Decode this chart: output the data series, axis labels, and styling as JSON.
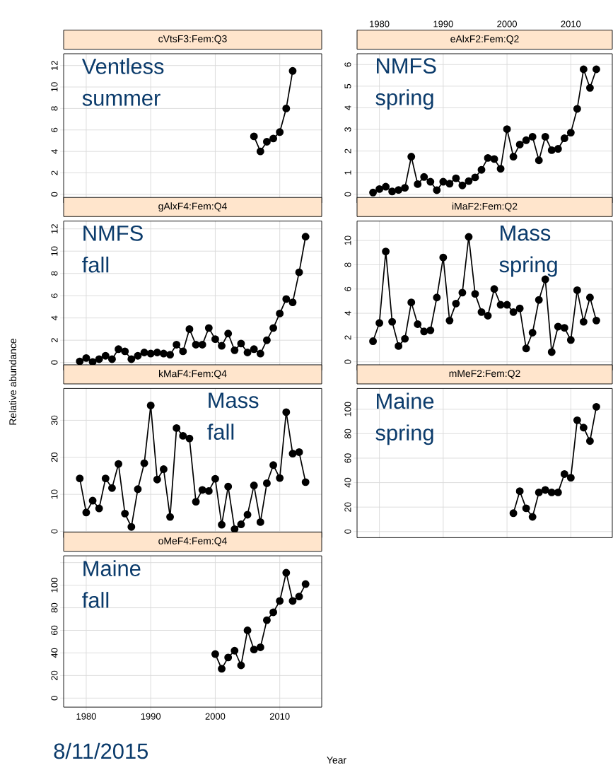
{
  "chart_data": [
    {
      "type": "line",
      "title": "cVtsF3:Fem:Q3",
      "annotations": [
        "Ventless summer"
      ],
      "x": [
        2006,
        2007,
        2008,
        2009,
        2010,
        2011,
        2012
      ],
      "values": [
        5.4,
        4.0,
        4.9,
        5.2,
        5.8,
        8.0,
        11.5
      ],
      "color": "#000000",
      "xlim": [
        1976.5,
        2016.5
      ],
      "xticks": [
        1980,
        1990,
        2000,
        2010
      ],
      "ylim": [
        -0.8,
        13.1
      ],
      "yticks": [
        0,
        2,
        4,
        6,
        8,
        10,
        12
      ],
      "grid": true,
      "marker": "circle",
      "line_style": "solid",
      "tick_labels": "y"
    },
    {
      "type": "line",
      "title": "eAlxF2:Fem:Q2",
      "annotations": [
        "NMFS spring"
      ],
      "x": [
        1979,
        1980,
        1981,
        1982,
        1983,
        1984,
        1985,
        1986,
        1987,
        1988,
        1989,
        1990,
        1991,
        1992,
        1993,
        1994,
        1995,
        1996,
        1997,
        1998,
        1999,
        2000,
        2001,
        2002,
        2003,
        2004,
        2005,
        2006,
        2007,
        2008,
        2009,
        2010,
        2011,
        2012,
        2013,
        2014
      ],
      "values": [
        0.08,
        0.24,
        0.35,
        0.13,
        0.2,
        0.3,
        1.74,
        0.47,
        0.8,
        0.58,
        0.19,
        0.58,
        0.49,
        0.74,
        0.41,
        0.61,
        0.78,
        1.13,
        1.68,
        1.63,
        1.18,
        3.01,
        1.74,
        2.3,
        2.5,
        2.66,
        1.57,
        2.66,
        2.04,
        2.1,
        2.59,
        2.85,
        3.95,
        5.78,
        4.92,
        5.78
      ],
      "color": "#000000",
      "xlim": [
        1976.5,
        2016.5
      ],
      "xticks": [
        1980,
        1990,
        2000,
        2010
      ],
      "ylim": [
        -0.4,
        6.5
      ],
      "yticks": [
        0,
        1,
        2,
        3,
        4,
        5,
        6
      ],
      "grid": true,
      "marker": "circle",
      "line_style": "solid"
    },
    {
      "type": "line",
      "title": "gAlxF4:Fem:Q4",
      "annotations": [
        "NMFS fall"
      ],
      "x": [
        1979,
        1980,
        1981,
        1982,
        1983,
        1984,
        1985,
        1986,
        1987,
        1988,
        1989,
        1990,
        1991,
        1992,
        1993,
        1994,
        1995,
        1996,
        1997,
        1998,
        1999,
        2000,
        2001,
        2002,
        2003,
        2004,
        2005,
        2006,
        2007,
        2008,
        2009,
        2010,
        2011,
        2012,
        2013,
        2014
      ],
      "values": [
        0.1,
        0.4,
        0.05,
        0.3,
        0.6,
        0.3,
        1.2,
        1.0,
        0.3,
        0.6,
        0.9,
        0.8,
        0.9,
        0.8,
        0.7,
        1.6,
        1.0,
        3.0,
        1.6,
        1.6,
        3.1,
        2.1,
        1.5,
        2.6,
        1.1,
        1.7,
        0.9,
        1.2,
        0.8,
        2.0,
        3.1,
        4.4,
        5.7,
        5.4,
        8.1,
        11.3
      ],
      "color": "#000000",
      "xlim": [
        1976.5,
        2016.5
      ],
      "xticks": [
        1980,
        1990,
        2000,
        2010
      ],
      "ylim": [
        -0.7,
        12.7
      ],
      "yticks": [
        0,
        2,
        4,
        6,
        8,
        10,
        12
      ],
      "grid": true,
      "marker": "circle",
      "line_style": "solid",
      "tick_labels": "y"
    },
    {
      "type": "line",
      "title": "iMaF2:Fem:Q2",
      "annotations": [
        "Mass spring"
      ],
      "x": [
        1979,
        1980,
        1981,
        1982,
        1983,
        1984,
        1985,
        1986,
        1987,
        1988,
        1989,
        1990,
        1991,
        1992,
        1993,
        1994,
        1995,
        1996,
        1997,
        1998,
        1999,
        2000,
        2001,
        2002,
        2003,
        2004,
        2005,
        2006,
        2007,
        2008,
        2009,
        2010,
        2011,
        2012,
        2013,
        2014
      ],
      "values": [
        1.7,
        3.2,
        9.1,
        3.3,
        1.3,
        1.9,
        4.9,
        3.1,
        2.5,
        2.6,
        5.3,
        8.6,
        3.4,
        4.8,
        5.7,
        10.3,
        5.6,
        4.1,
        3.8,
        6.0,
        4.7,
        4.7,
        4.1,
        4.4,
        1.1,
        2.4,
        5.1,
        6.8,
        0.8,
        2.9,
        2.8,
        1.8,
        5.9,
        3.3,
        5.3,
        3.4
      ],
      "color": "#000000",
      "xlim": [
        1976.5,
        2016.5
      ],
      "xticks": [
        1980,
        1990,
        2000,
        2010
      ],
      "ylim": [
        -0.7,
        11.6
      ],
      "yticks": [
        0,
        2,
        4,
        6,
        8,
        10
      ],
      "grid": true,
      "marker": "circle",
      "line_style": "solid",
      "tick_labels": "y"
    },
    {
      "type": "line",
      "title": "kMaF4:Fem:Q4",
      "ylabel": "Relative abundance",
      "annotations": [
        "Mass fall"
      ],
      "x": [
        1979,
        1980,
        1981,
        1982,
        1983,
        1984,
        1985,
        1986,
        1987,
        1988,
        1989,
        1990,
        1991,
        1992,
        1993,
        1994,
        1995,
        1996,
        1997,
        1998,
        1999,
        2000,
        2001,
        2002,
        2003,
        2004,
        2005,
        2006,
        2007,
        2008,
        2009,
        2010,
        2011,
        2012,
        2013,
        2014
      ],
      "values": [
        14.3,
        5.1,
        8.3,
        6.2,
        14.3,
        11.7,
        18.2,
        4.8,
        1.2,
        11.4,
        18.4,
        34.0,
        14.0,
        16.8,
        3.9,
        27.9,
        25.8,
        25.1,
        8.0,
        11.2,
        10.9,
        14.2,
        1.8,
        12.1,
        0.6,
        1.9,
        4.5,
        12.4,
        2.5,
        13.0,
        17.9,
        14.4,
        32.2,
        21.0,
        21.4,
        13.3
      ],
      "color": "#000000",
      "xlim": [
        1976.5,
        2016.5
      ],
      "xticks": [
        1980,
        1990,
        2000,
        2010
      ],
      "ylim": [
        -1.7,
        38.6
      ],
      "yticks": [
        0,
        10,
        20,
        30
      ],
      "grid": true,
      "marker": "circle",
      "line_style": "solid",
      "tick_labels": "y"
    },
    {
      "type": "line",
      "title": "mMeF2:Fem:Q2",
      "annotations": [
        "Maine spring"
      ],
      "x": [
        2001,
        2002,
        2003,
        2004,
        2005,
        2006,
        2007,
        2008,
        2009,
        2010,
        2011,
        2012,
        2013,
        2014
      ],
      "values": [
        15,
        33,
        19,
        12,
        32,
        34,
        32,
        32,
        47,
        44,
        91,
        85,
        74,
        102
      ],
      "color": "#000000",
      "xlim": [
        1976.5,
        2016.5
      ],
      "xticks": [
        1980,
        1990,
        2000,
        2010
      ],
      "ylim": [
        -5,
        117
      ],
      "yticks": [
        0,
        20,
        40,
        60,
        80,
        100
      ],
      "grid": true,
      "marker": "circle",
      "line_style": "solid",
      "tick_labels": "y"
    },
    {
      "type": "line",
      "title": "oMeF4:Fem:Q4",
      "xlabel": "Year",
      "annotations": [
        "Maine fall",
        "8/11/2015"
      ],
      "x": [
        2000,
        2001,
        2002,
        2003,
        2004,
        2005,
        2006,
        2007,
        2008,
        2009,
        2010,
        2011,
        2012,
        2013,
        2014
      ],
      "values": [
        39,
        26,
        36,
        42,
        29,
        60,
        43,
        45,
        69,
        76,
        86,
        111,
        86,
        90,
        101
      ],
      "color": "#000000",
      "xlim": [
        1976.5,
        2016.5
      ],
      "xticks": [
        1980,
        1990,
        2000,
        2010
      ],
      "ylim": [
        -8,
        126
      ],
      "yticks": [
        0,
        20,
        40,
        60,
        80,
        100,
        {
          "value": 120,
          "label": null
        }
      ],
      "grid": true,
      "marker": "circle",
      "line_style": "solid"
    }
  ]
}
